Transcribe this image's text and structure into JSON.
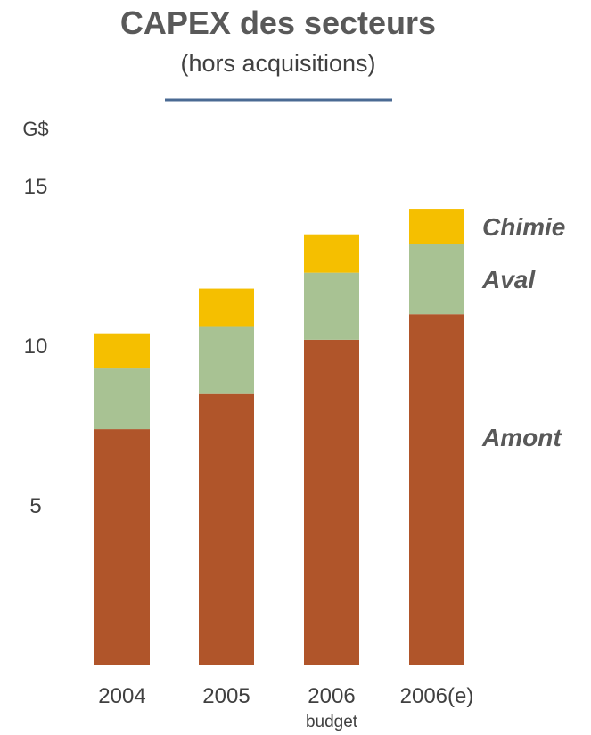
{
  "chart_data": {
    "type": "bar",
    "stacked": true,
    "title": "CAPEX des secteurs",
    "subtitle": "(hors acquisitions)",
    "ylabel": "G$",
    "ylim": [
      0,
      15
    ],
    "yticks": [
      5,
      10,
      15
    ],
    "categories": [
      "2004",
      "2005",
      "2006",
      "2006(e)"
    ],
    "category_sublabels": [
      "",
      "",
      "budget",
      ""
    ],
    "series": [
      {
        "name": "Amont",
        "values": [
          7.4,
          8.5,
          10.2,
          11.0
        ],
        "color": "#b0552a"
      },
      {
        "name": "Aval",
        "values": [
          1.9,
          2.1,
          2.1,
          2.2
        ],
        "color": "#a8c293"
      },
      {
        "name": "Chimie",
        "values": [
          1.1,
          1.2,
          1.2,
          1.1
        ],
        "color": "#f5bf00"
      }
    ],
    "grid": false,
    "legend": "right, inline with bars"
  },
  "colors": {
    "divider": "#4a6a93",
    "text": "#404040",
    "title": "#595959"
  }
}
